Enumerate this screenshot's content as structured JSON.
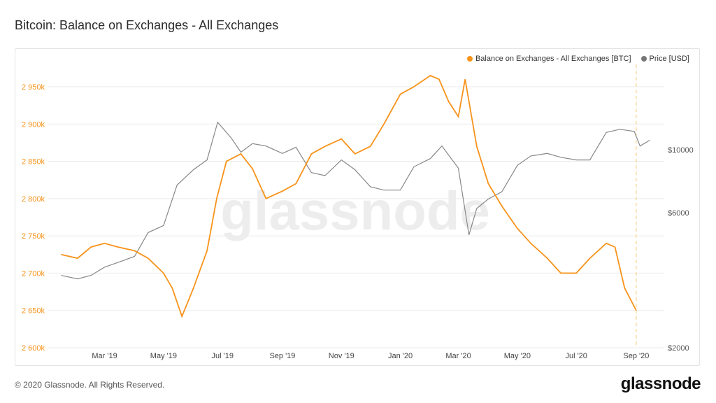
{
  "header": {
    "title": "Bitcoin: Balance on Exchanges - All Exchanges"
  },
  "footer": {
    "copyright": "© 2020 Glassnode. All Rights Reserved.",
    "logo_text": "glassnode"
  },
  "watermark": "glassnode",
  "colors": {
    "balance": "#f7931a",
    "price": "#888888",
    "grid": "#ebebeb",
    "marker": "#f7d28f"
  },
  "chart_data": {
    "type": "line",
    "title": "Bitcoin: Balance on Exchanges - All Exchanges",
    "legend_position": "top-right",
    "grid": true,
    "x_ticks": [
      "Mar '19",
      "May '19",
      "Jul '19",
      "Sep '19",
      "Nov '19",
      "Jan '20",
      "Mar '20",
      "May '20",
      "Jul '20",
      "Sep '20"
    ],
    "y_left": {
      "ticks": [
        "2 600k",
        "2 650k",
        "2 700k",
        "2 750k",
        "2 800k",
        "2 850k",
        "2 900k",
        "2 950k"
      ],
      "range": [
        2600000,
        2980000
      ]
    },
    "y_right": {
      "scale": "log",
      "ticks": [
        "$2000",
        "$6000",
        "$10000"
      ],
      "range": [
        2000,
        20000
      ]
    },
    "series": [
      {
        "name": "Balance on Exchanges - All Exchanges [BTC]",
        "x": [
          "2019-01-15",
          "2019-02-01",
          "2019-02-15",
          "2019-03-01",
          "2019-03-15",
          "2019-04-01",
          "2019-04-15",
          "2019-05-01",
          "2019-05-10",
          "2019-05-20",
          "2019-06-01",
          "2019-06-15",
          "2019-06-25",
          "2019-07-05",
          "2019-07-20",
          "2019-08-01",
          "2019-08-15",
          "2019-09-01",
          "2019-09-15",
          "2019-10-01",
          "2019-10-15",
          "2019-11-01",
          "2019-11-15",
          "2019-12-01",
          "2019-12-15",
          "2020-01-01",
          "2020-01-15",
          "2020-02-01",
          "2020-02-10",
          "2020-02-20",
          "2020-03-01",
          "2020-03-08",
          "2020-03-20",
          "2020-04-01",
          "2020-04-15",
          "2020-05-01",
          "2020-05-15",
          "2020-06-01",
          "2020-06-15",
          "2020-07-01",
          "2020-07-15",
          "2020-08-01",
          "2020-08-10",
          "2020-08-20",
          "2020-09-01"
        ],
        "values": [
          2725000,
          2720000,
          2735000,
          2740000,
          2735000,
          2730000,
          2720000,
          2700000,
          2680000,
          2642000,
          2680000,
          2730000,
          2800000,
          2850000,
          2860000,
          2840000,
          2800000,
          2810000,
          2820000,
          2860000,
          2870000,
          2880000,
          2860000,
          2870000,
          2900000,
          2940000,
          2950000,
          2965000,
          2960000,
          2930000,
          2910000,
          2960000,
          2870000,
          2820000,
          2790000,
          2760000,
          2740000,
          2720000,
          2700000,
          2700000,
          2720000,
          2740000,
          2735000,
          2680000,
          2650000
        ]
      },
      {
        "name": "Price [USD]",
        "x": [
          "2019-01-15",
          "2019-02-01",
          "2019-02-15",
          "2019-03-01",
          "2019-03-15",
          "2019-04-01",
          "2019-04-15",
          "2019-05-01",
          "2019-05-15",
          "2019-06-01",
          "2019-06-15",
          "2019-06-26",
          "2019-07-10",
          "2019-07-20",
          "2019-08-01",
          "2019-08-15",
          "2019-09-01",
          "2019-09-15",
          "2019-10-01",
          "2019-10-15",
          "2019-11-01",
          "2019-11-15",
          "2019-12-01",
          "2019-12-15",
          "2020-01-01",
          "2020-01-15",
          "2020-02-01",
          "2020-02-13",
          "2020-03-01",
          "2020-03-12",
          "2020-03-20",
          "2020-04-01",
          "2020-04-15",
          "2020-05-01",
          "2020-05-15",
          "2020-06-01",
          "2020-06-15",
          "2020-07-01",
          "2020-07-15",
          "2020-08-01",
          "2020-08-15",
          "2020-08-30",
          "2020-09-05",
          "2020-09-15"
        ],
        "values": [
          3600,
          3500,
          3600,
          3850,
          4000,
          4200,
          5100,
          5400,
          7500,
          8500,
          9200,
          12500,
          11000,
          9800,
          10500,
          10300,
          9700,
          10200,
          8300,
          8100,
          9200,
          8500,
          7400,
          7200,
          7200,
          8700,
          9300,
          10300,
          8600,
          5000,
          6200,
          6700,
          7100,
          8800,
          9500,
          9700,
          9400,
          9200,
          9200,
          11500,
          11800,
          11600,
          10300,
          10800
        ]
      }
    ],
    "annotations": [
      {
        "type": "vertical-dashed-line",
        "x": "2020-09-01"
      }
    ]
  }
}
